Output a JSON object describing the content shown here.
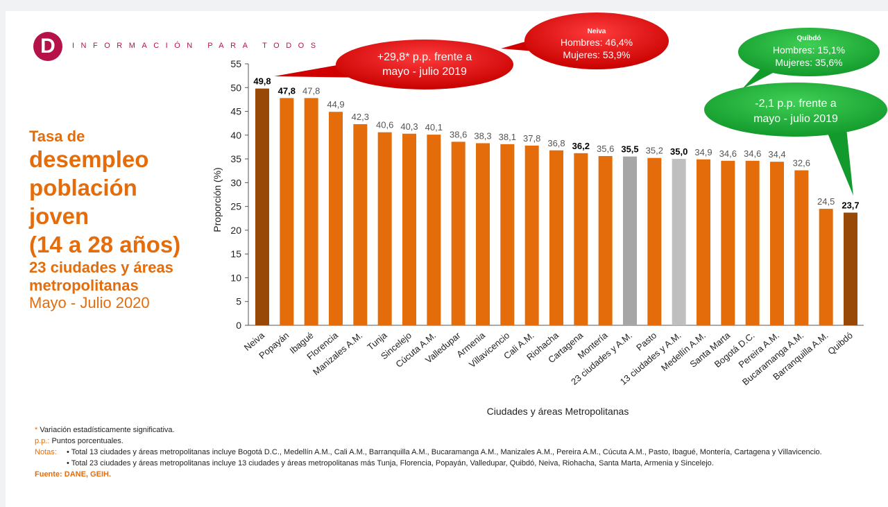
{
  "header": {
    "logo_letter": "D",
    "tagline": "INFORMACIÓN PARA TODOS"
  },
  "title": {
    "line1": "Tasa de",
    "line2": "desempleo",
    "line3": "población",
    "line4": "joven",
    "line5": "(14 a 28 años)",
    "line6": "23 ciudades y áreas",
    "line7": "metropolitanas",
    "line8": "Mayo - Julio 2020"
  },
  "colors": {
    "orange": "#E46C0A",
    "dark": "#984807",
    "gray23": "#A6A6A6",
    "gray13": "#BFBFBF",
    "red": "#E00000",
    "green": "#1FA33A"
  },
  "chart_data": {
    "type": "bar",
    "xlabel": "Ciudades y áreas Metropolitanas",
    "ylabel": "Proporción (%)",
    "ylim": [
      0,
      55
    ],
    "yticks": [
      0,
      5,
      10,
      15,
      20,
      25,
      30,
      35,
      40,
      45,
      50,
      55
    ],
    "categories": [
      "Neiva",
      "Popayán",
      "Ibagué",
      "Florencia",
      "Manizales A.M.",
      "Tunja",
      "Sincelejo",
      "Cúcuta A.M.",
      "Valledupar",
      "Armenia",
      "Villavicencio",
      "Cali A.M.",
      "Riohacha",
      "Cartagena",
      "Montería",
      "23 ciudades y A.M.",
      "Pasto",
      "13 ciudades y A.M.",
      "Medellín A.M.",
      "Santa Marta",
      "Bogotá D.C.",
      "Pereira A.M.",
      "Bucaramanga A.M.",
      "Barranquilla A.M.",
      "Quibdó"
    ],
    "values": [
      49.8,
      47.8,
      47.8,
      44.9,
      42.3,
      40.6,
      40.3,
      40.1,
      38.6,
      38.3,
      38.1,
      37.8,
      36.8,
      36.2,
      35.6,
      35.5,
      35.2,
      35.0,
      34.9,
      34.6,
      34.6,
      34.4,
      32.6,
      24.5,
      23.7
    ],
    "labels": [
      "49,8",
      "47,8",
      "47,8",
      "44,9",
      "42,3",
      "40,6",
      "40,3",
      "40,1",
      "38,6",
      "38,3",
      "38,1",
      "37,8",
      "36,8",
      "36,2",
      "35,6",
      "35,5",
      "35,2",
      "35,0",
      "34,9",
      "34,6",
      "34,6",
      "34,4",
      "32,6",
      "24,5",
      "23,7"
    ],
    "bold_labels": [
      0,
      1,
      13,
      15,
      17,
      24
    ],
    "bar_colors": [
      "dark",
      "orange",
      "orange",
      "orange",
      "orange",
      "orange",
      "orange",
      "orange",
      "orange",
      "orange",
      "orange",
      "orange",
      "orange",
      "orange",
      "orange",
      "gray23",
      "orange",
      "gray13",
      "orange",
      "orange",
      "orange",
      "orange",
      "orange",
      "orange",
      "dark"
    ],
    "annotations": {
      "neiva_change": {
        "line1": "+29,8* p.p. frente a",
        "line2": "mayo - julio 2019"
      },
      "neiva_sex": {
        "title": "Neiva",
        "line1": "Hombres: 46,4%",
        "line2": "Mujeres: 53,9%"
      },
      "quibdo_sex": {
        "title": "Quibdó",
        "line1": "Hombres: 15,1%",
        "line2": "Mujeres: 35,6%"
      },
      "quibdo_change": {
        "line1": "-2,1 p.p. frente a",
        "line2": "mayo - julio 2019"
      }
    }
  },
  "notes": {
    "sig": "Variación estadísticamente significativa.",
    "sig_mark": "*",
    "pp_label": "p.p.:",
    "pp": "Puntos porcentuales.",
    "notas_label": "Notas:",
    "n1": "• Total 13 ciudades y áreas metropolitanas incluye Bogotá D.C., Medellín A.M., Cali A.M., Barranquilla A.M., Bucaramanga A.M., Manizales A.M., Pereira A.M., Cúcuta A.M., Pasto, Ibagué, Montería, Cartagena y Villavicencio.",
    "n2": "• Total 23 ciudades y áreas metropolitanas incluye 13 ciudades y áreas metropolitanas más Tunja, Florencia, Popayán, Valledupar, Quibdó, Neiva, Riohacha, Santa Marta, Armenia y Sincelejo.",
    "fuente": "Fuente: DANE, GEIH."
  }
}
